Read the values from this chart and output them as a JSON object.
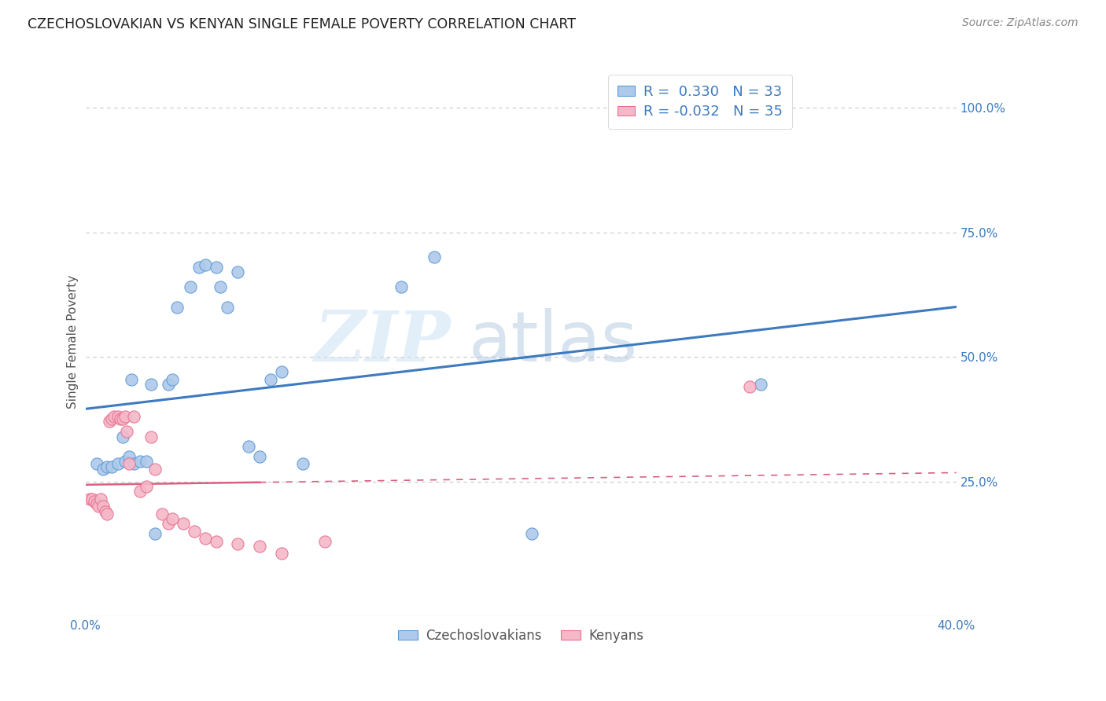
{
  "title": "CZECHOSLOVAKIAN VS KENYAN SINGLE FEMALE POVERTY CORRELATION CHART",
  "source": "Source: ZipAtlas.com",
  "ylabel_label": "Single Female Poverty",
  "xlim": [
    0.0,
    0.4
  ],
  "ylim": [
    -0.02,
    1.08
  ],
  "bg_color": "#ffffff",
  "watermark_zip": "ZIP",
  "watermark_atlas": "atlas",
  "blue_color": "#aec9ea",
  "blue_edge_color": "#5b9bd5",
  "pink_color": "#f4b8c8",
  "pink_edge_color": "#e87090",
  "blue_line_color": "#3d7abf",
  "pink_line_color": "#d96080",
  "blue_R": 0.33,
  "blue_N": 33,
  "pink_R": -0.032,
  "pink_N": 35,
  "y_ticks": [
    0.0,
    0.25,
    0.5,
    0.75,
    1.0
  ],
  "y_tick_labels_right": [
    "",
    "25.0%",
    "50.0%",
    "75.0%",
    "100.0%"
  ],
  "x_ticks": [
    0.0,
    0.05,
    0.1,
    0.15,
    0.2,
    0.25,
    0.3,
    0.35,
    0.4
  ],
  "x_tick_labels": [
    "0.0%",
    "",
    "",
    "",
    "",
    "",
    "",
    "",
    "40.0%"
  ],
  "grid_color": "#c8c8c8",
  "cz_x": [
    0.021,
    0.03,
    0.038,
    0.04,
    0.042,
    0.048,
    0.052,
    0.055,
    0.06,
    0.062,
    0.065,
    0.07,
    0.075,
    0.08,
    0.085,
    0.09,
    0.005,
    0.008,
    0.01,
    0.012,
    0.015,
    0.017,
    0.018,
    0.02,
    0.022,
    0.025,
    0.028,
    0.032,
    0.1,
    0.145,
    0.16,
    0.205,
    0.31
  ],
  "cz_y": [
    0.455,
    0.445,
    0.445,
    0.455,
    0.6,
    0.64,
    0.68,
    0.685,
    0.68,
    0.64,
    0.6,
    0.67,
    0.32,
    0.3,
    0.455,
    0.47,
    0.285,
    0.275,
    0.28,
    0.28,
    0.285,
    0.34,
    0.29,
    0.3,
    0.285,
    0.29,
    0.29,
    0.145,
    0.285,
    0.64,
    0.7,
    0.145,
    0.445
  ],
  "ke_x": [
    0.002,
    0.003,
    0.004,
    0.005,
    0.006,
    0.007,
    0.008,
    0.009,
    0.01,
    0.011,
    0.012,
    0.013,
    0.015,
    0.016,
    0.017,
    0.018,
    0.019,
    0.02,
    0.022,
    0.025,
    0.028,
    0.03,
    0.032,
    0.035,
    0.038,
    0.04,
    0.045,
    0.05,
    0.055,
    0.06,
    0.07,
    0.08,
    0.09,
    0.11,
    0.305
  ],
  "ke_y": [
    0.215,
    0.215,
    0.21,
    0.205,
    0.2,
    0.215,
    0.2,
    0.19,
    0.185,
    0.37,
    0.375,
    0.38,
    0.38,
    0.375,
    0.375,
    0.38,
    0.35,
    0.285,
    0.38,
    0.23,
    0.24,
    0.34,
    0.275,
    0.185,
    0.165,
    0.175,
    0.165,
    0.15,
    0.135,
    0.13,
    0.125,
    0.12,
    0.105,
    0.13,
    0.44
  ]
}
